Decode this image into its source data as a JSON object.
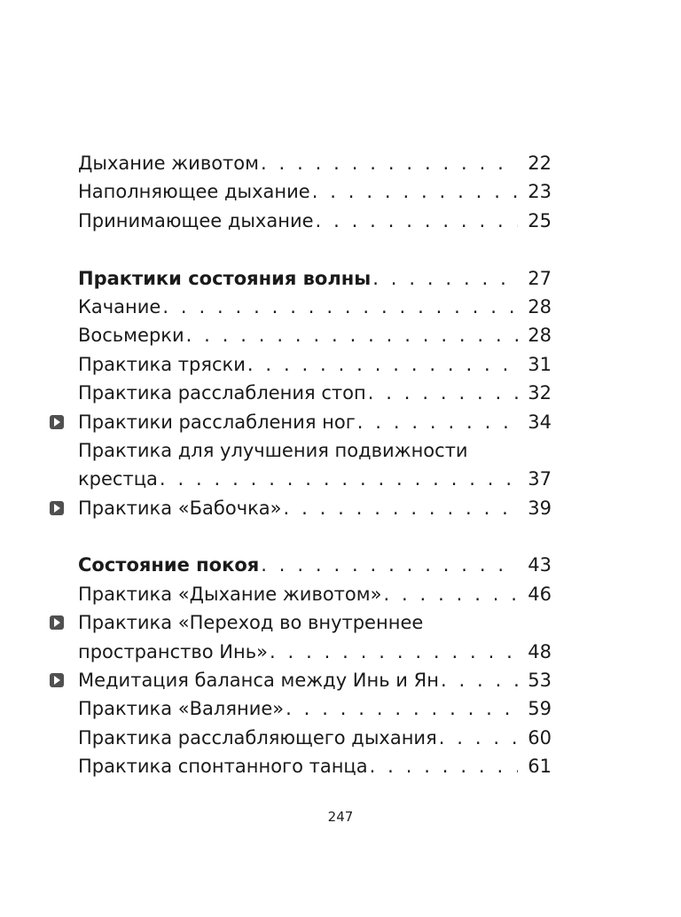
{
  "toc": {
    "entries": [
      {
        "title": "Дыхание животом",
        "page": "22",
        "bold": false,
        "marker": false,
        "group_start": false,
        "title_line2": ""
      },
      {
        "title": "Наполняющее дыхание",
        "page": "23",
        "bold": false,
        "marker": false,
        "group_start": false,
        "title_line2": ""
      },
      {
        "title": "Принимающее дыхание",
        "page": "25",
        "bold": false,
        "marker": false,
        "group_start": false,
        "title_line2": ""
      },
      {
        "title": "Практики состояния волны",
        "page": "27",
        "bold": true,
        "marker": false,
        "group_start": true,
        "title_line2": ""
      },
      {
        "title": "Качание",
        "page": "28",
        "bold": false,
        "marker": false,
        "group_start": false,
        "title_line2": ""
      },
      {
        "title": "Восьмерки",
        "page": "28",
        "bold": false,
        "marker": false,
        "group_start": false,
        "title_line2": ""
      },
      {
        "title": "Практика тряски",
        "page": "31",
        "bold": false,
        "marker": false,
        "group_start": false,
        "title_line2": ""
      },
      {
        "title": "Практика расслабления стоп",
        "page": "32",
        "bold": false,
        "marker": false,
        "group_start": false,
        "title_line2": ""
      },
      {
        "title": "Практики расслабления ног",
        "page": "34",
        "bold": false,
        "marker": true,
        "group_start": false,
        "title_line2": ""
      },
      {
        "title": "Практика для улучшения подвижности",
        "page": "37",
        "bold": false,
        "marker": false,
        "group_start": false,
        "title_line2": "крестца"
      },
      {
        "title": "Практика «Бабочка»",
        "page": "39",
        "bold": false,
        "marker": true,
        "group_start": false,
        "title_line2": ""
      },
      {
        "title": "Состояние покоя",
        "page": "43",
        "bold": true,
        "marker": false,
        "group_start": true,
        "title_line2": ""
      },
      {
        "title": "Практика «Дыхание животом»",
        "page": "46",
        "bold": false,
        "marker": false,
        "group_start": false,
        "title_line2": ""
      },
      {
        "title": "Практика «Переход во внутреннее",
        "page": "48",
        "bold": false,
        "marker": true,
        "group_start": false,
        "title_line2": "пространство Инь»"
      },
      {
        "title": "Медитация баланса между Инь и Ян",
        "page": "53",
        "bold": false,
        "marker": true,
        "group_start": false,
        "title_line2": ""
      },
      {
        "title": "Практика «Валяние»",
        "page": "59",
        "bold": false,
        "marker": false,
        "group_start": false,
        "title_line2": ""
      },
      {
        "title": "Практика расслабляющего дыхания",
        "page": "60",
        "bold": false,
        "marker": false,
        "group_start": false,
        "title_line2": ""
      },
      {
        "title": "Практика спонтанного танца",
        "page": "61",
        "bold": false,
        "marker": false,
        "group_start": false,
        "title_line2": ""
      }
    ]
  },
  "footer": {
    "page_number": "247"
  },
  "icons": {
    "marker": "play-icon"
  }
}
